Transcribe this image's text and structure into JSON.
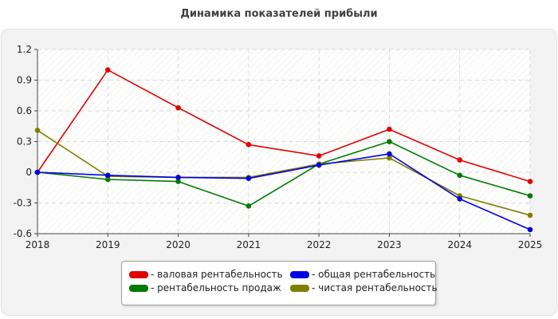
{
  "title": "Динамика показателей прибыли",
  "colors": {
    "gross": "#e50000",
    "total": "#0000e5",
    "sales": "#007a00",
    "net": "#7f7f00"
  },
  "chart_data": {
    "type": "line",
    "title": "Динамика показателей прибыли",
    "xlabel": "",
    "ylabel": "",
    "categories": [
      "2018",
      "2019",
      "2020",
      "2021",
      "2022",
      "2023",
      "2024",
      "2025"
    ],
    "ylim": [
      -0.6,
      1.2
    ],
    "yticks": [
      "1.2",
      "0.9",
      "0.6",
      "0.3",
      "0",
      "-0.3",
      "-0.6"
    ],
    "grid": true,
    "legend_position": "bottom",
    "series": [
      {
        "name": "- валовая рентабельность",
        "color": "#e50000",
        "values": [
          0,
          1.0,
          0.63,
          0.27,
          0.16,
          0.42,
          0.12,
          -0.09
        ]
      },
      {
        "name": "- общая рентабельность",
        "color": "#0000e5",
        "values": [
          0,
          -0.03,
          -0.05,
          -0.06,
          0.07,
          0.18,
          -0.26,
          -0.56
        ]
      },
      {
        "name": "- рентабельность продаж",
        "color": "#007a00",
        "values": [
          0,
          -0.07,
          -0.09,
          -0.33,
          0.08,
          0.3,
          -0.03,
          -0.23
        ]
      },
      {
        "name": "- чистая рентабельность",
        "color": "#7f7f00",
        "values": [
          0.41,
          -0.04,
          -0.05,
          -0.05,
          0.08,
          0.14,
          -0.23,
          -0.42
        ]
      }
    ]
  }
}
